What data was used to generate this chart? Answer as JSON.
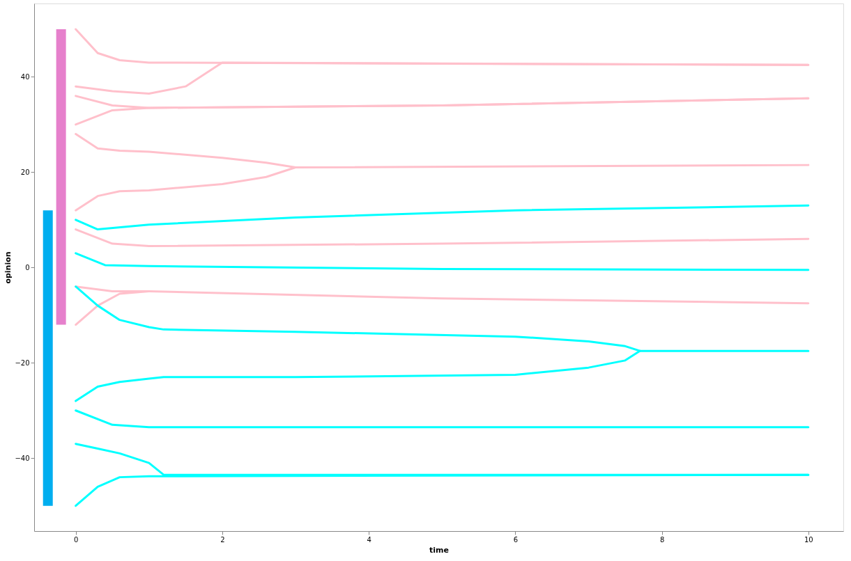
{
  "chart_data": {
    "type": "line",
    "xlabel": "time",
    "ylabel": "opinion",
    "xlim": [
      -0.52,
      10.43
    ],
    "ylim": [
      -55.3,
      55.4
    ],
    "xticks": [
      0,
      2,
      4,
      6,
      8,
      10
    ],
    "yticks": [
      -40,
      -20,
      0,
      20,
      40
    ],
    "grid": false,
    "marker": "none",
    "line_style": "solid",
    "series": [
      {
        "type": "bar",
        "x": [
          -0.38
        ],
        "base": [
          -50
        ],
        "values": [
          62
        ],
        "color": "#00aeef"
      },
      {
        "type": "bar",
        "x": [
          -0.2
        ],
        "base": [
          -12
        ],
        "values": [
          62
        ],
        "color": "#e680cc"
      },
      {
        "color": "#ffc0cb",
        "x": [
          0,
          0.3,
          0.6,
          1,
          10
        ],
        "values": [
          50,
          45,
          43.5,
          43,
          42.5
        ]
      },
      {
        "color": "#ffc0cb",
        "x": [
          0,
          0.5,
          1,
          1.5,
          1.9,
          2,
          10
        ],
        "values": [
          38,
          37,
          36.5,
          38,
          42,
          43,
          42.5
        ]
      },
      {
        "color": "#ffc0cb",
        "x": [
          0,
          0.5,
          1,
          5,
          10
        ],
        "values": [
          36,
          34,
          33.5,
          34,
          35.5
        ]
      },
      {
        "color": "#ffc0cb",
        "x": [
          0,
          0.5,
          1,
          5,
          10
        ],
        "values": [
          30,
          33,
          33.5,
          34,
          35.5
        ]
      },
      {
        "color": "#ffc0cb",
        "x": [
          0,
          0.3,
          0.6,
          1,
          2,
          2.6,
          3,
          10
        ],
        "values": [
          28,
          25,
          24.5,
          24.3,
          23,
          22,
          21,
          21.5
        ]
      },
      {
        "color": "#ffc0cb",
        "x": [
          0,
          0.3,
          0.6,
          1,
          2,
          2.6,
          3
        ],
        "values": [
          12,
          15,
          16,
          16.2,
          17.5,
          19,
          21
        ]
      },
      {
        "color": "#ffc0cb",
        "x": [
          0,
          0.5,
          1,
          5,
          10
        ],
        "values": [
          8,
          5,
          4.5,
          5,
          6
        ]
      },
      {
        "color": "#ffc0cb",
        "x": [
          0,
          0.5,
          1,
          5,
          10
        ],
        "values": [
          -4,
          -5,
          -5,
          -6.5,
          -7.5
        ]
      },
      {
        "color": "#ffc0cb",
        "x": [
          0,
          0.3,
          0.6,
          1
        ],
        "values": [
          -12,
          -8,
          -5.5,
          -5
        ]
      },
      {
        "color": "#00ffff",
        "x": [
          0,
          0.3,
          1,
          3,
          6,
          10
        ],
        "values": [
          10,
          8,
          9,
          10.5,
          12,
          13
        ]
      },
      {
        "color": "#00ffff",
        "x": [
          0,
          0.4,
          1,
          5,
          10
        ],
        "values": [
          3,
          0.5,
          0.3,
          -0.3,
          -0.5
        ]
      },
      {
        "color": "#00ffff",
        "x": [
          0,
          0.3,
          0.6,
          1,
          1.2,
          3,
          6,
          7,
          7.5,
          7.7,
          10
        ],
        "values": [
          -4,
          -8,
          -11,
          -12.5,
          -13,
          -13.5,
          -14.5,
          -15.5,
          -16.5,
          -17.5,
          -17.5
        ]
      },
      {
        "color": "#00ffff",
        "x": [
          0,
          0.3,
          0.6,
          1,
          1.2,
          3,
          6,
          7,
          7.5,
          7.7
        ],
        "values": [
          -28,
          -25,
          -24,
          -23.3,
          -23,
          -23,
          -22.5,
          -21,
          -19.5,
          -17.5
        ]
      },
      {
        "color": "#00ffff",
        "x": [
          0,
          0.5,
          1,
          10
        ],
        "values": [
          -30,
          -33,
          -33.5,
          -33.5
        ]
      },
      {
        "color": "#00ffff",
        "x": [
          0,
          0.3,
          0.6,
          1,
          1.2,
          10
        ],
        "values": [
          -37,
          -38,
          -39,
          -41,
          -43.5,
          -43.5
        ]
      },
      {
        "color": "#00ffff",
        "x": [
          0,
          0.3,
          0.6,
          1,
          10
        ],
        "values": [
          -50,
          -46,
          -44,
          -43.8,
          -43.5
        ]
      }
    ]
  }
}
